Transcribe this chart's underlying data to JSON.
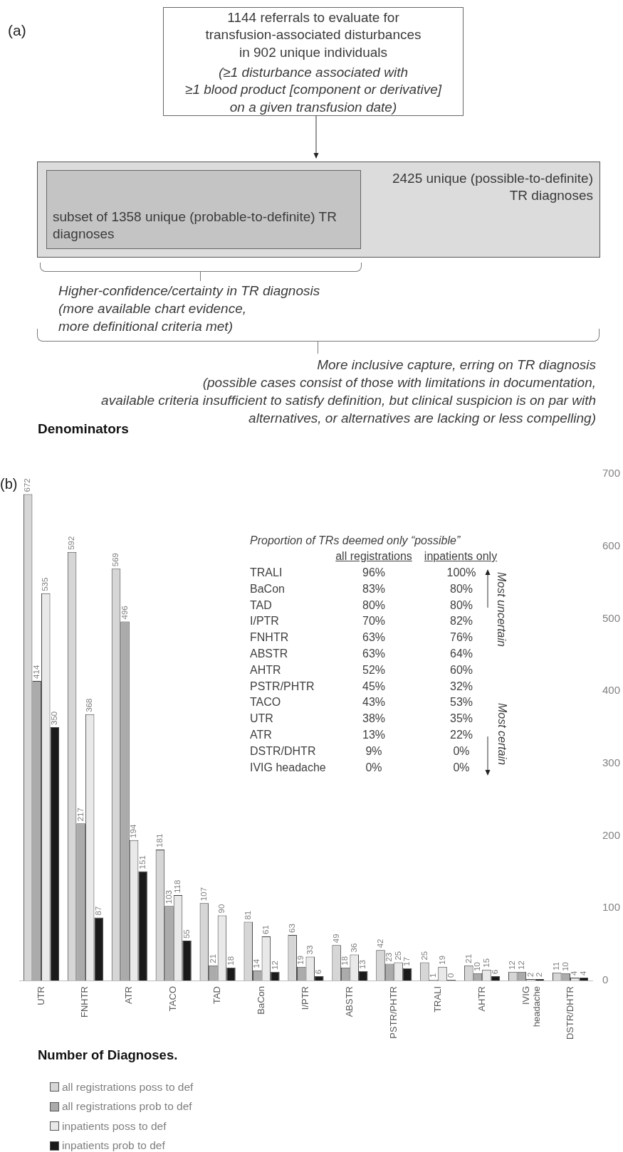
{
  "chart_data": [
    {
      "type": "other",
      "title": "(a)",
      "annotations": [
        "1144 referrals to evaluate for\ntransfusion-associated disturbances\nin 902 unique individuals",
        "(≥1 disturbance associated with\n≥1 blood product [component or derivative]\non a given transfusion date)",
        "2425 unique (possible-to-definite)\nTR diagnoses",
        "subset of 1358 unique (probable-to-definite) TR\ndiagnoses",
        "Higher-confidence/certainty in TR diagnosis\n(more available chart evidence,\nmore definitional criteria met)",
        "More inclusive capture, erring on TR diagnosis\n(possible cases consist of those with limitations in documentation,\navailable criteria insufficient to satisfy definition, but clinical suspicion is on par with\nalternatives, or alternatives are lacking or less compelling)",
        "Denominators"
      ]
    },
    {
      "type": "bar",
      "title": "(b)",
      "categories": [
        "UTR",
        "FNHTR",
        "ATR",
        "TACO",
        "TAD",
        "BaCon",
        "I/PTR",
        "ABSTR",
        "PSTR/PHTR",
        "TRALI",
        "AHTR",
        "IVIG headache",
        "DSTR/DHTR"
      ],
      "series": [
        {
          "name": "all registrations poss to def",
          "color": "#d6d6d6",
          "values": [
            672,
            592,
            569,
            181,
            107,
            81,
            63,
            49,
            42,
            25,
            21,
            12,
            11
          ]
        },
        {
          "name": "all registrations prob to def",
          "color": "#ababab",
          "values": [
            414,
            217,
            496,
            103,
            21,
            14,
            19,
            18,
            23,
            1,
            10,
            12,
            10
          ]
        },
        {
          "name": "inpatients poss to def",
          "color": "#e9e9e9",
          "values": [
            535,
            368,
            194,
            118,
            90,
            61,
            33,
            36,
            25,
            19,
            15,
            2,
            4
          ]
        },
        {
          "name": "inpatients prob to def",
          "color": "#1a1a1a",
          "values": [
            350,
            87,
            151,
            55,
            18,
            12,
            6,
            13,
            17,
            0,
            6,
            2,
            4
          ]
        }
      ],
      "ylim": [
        0,
        700
      ],
      "yticks": [
        0,
        100,
        200,
        300,
        400,
        500,
        600,
        700
      ],
      "data_labels": true,
      "legend": "bottom left",
      "annotations": [
        "Proportion of TRs deemed only “possible”",
        "all registrations",
        "inpatients only",
        "TRALI",
        "96%",
        "100%",
        "BaCon",
        "83%",
        "80%",
        "TAD",
        "80%",
        "80%",
        "I/PTR",
        "70%",
        "82%",
        "FNHTR",
        "63%",
        "76%",
        "ABSTR",
        "63%",
        "64%",
        "AHTR",
        "52%",
        "60%",
        "PSTR/PHTR",
        "45%",
        "32%",
        "TACO",
        "43%",
        "53%",
        "UTR",
        "38%",
        "35%",
        "ATR",
        "13%",
        "22%",
        "DSTR/DHTR",
        "9%",
        "0%",
        "IVIG headache",
        "0%",
        "0%",
        "Most uncertain",
        "Most certain",
        "Number of Diagnoses."
      ]
    }
  ]
}
